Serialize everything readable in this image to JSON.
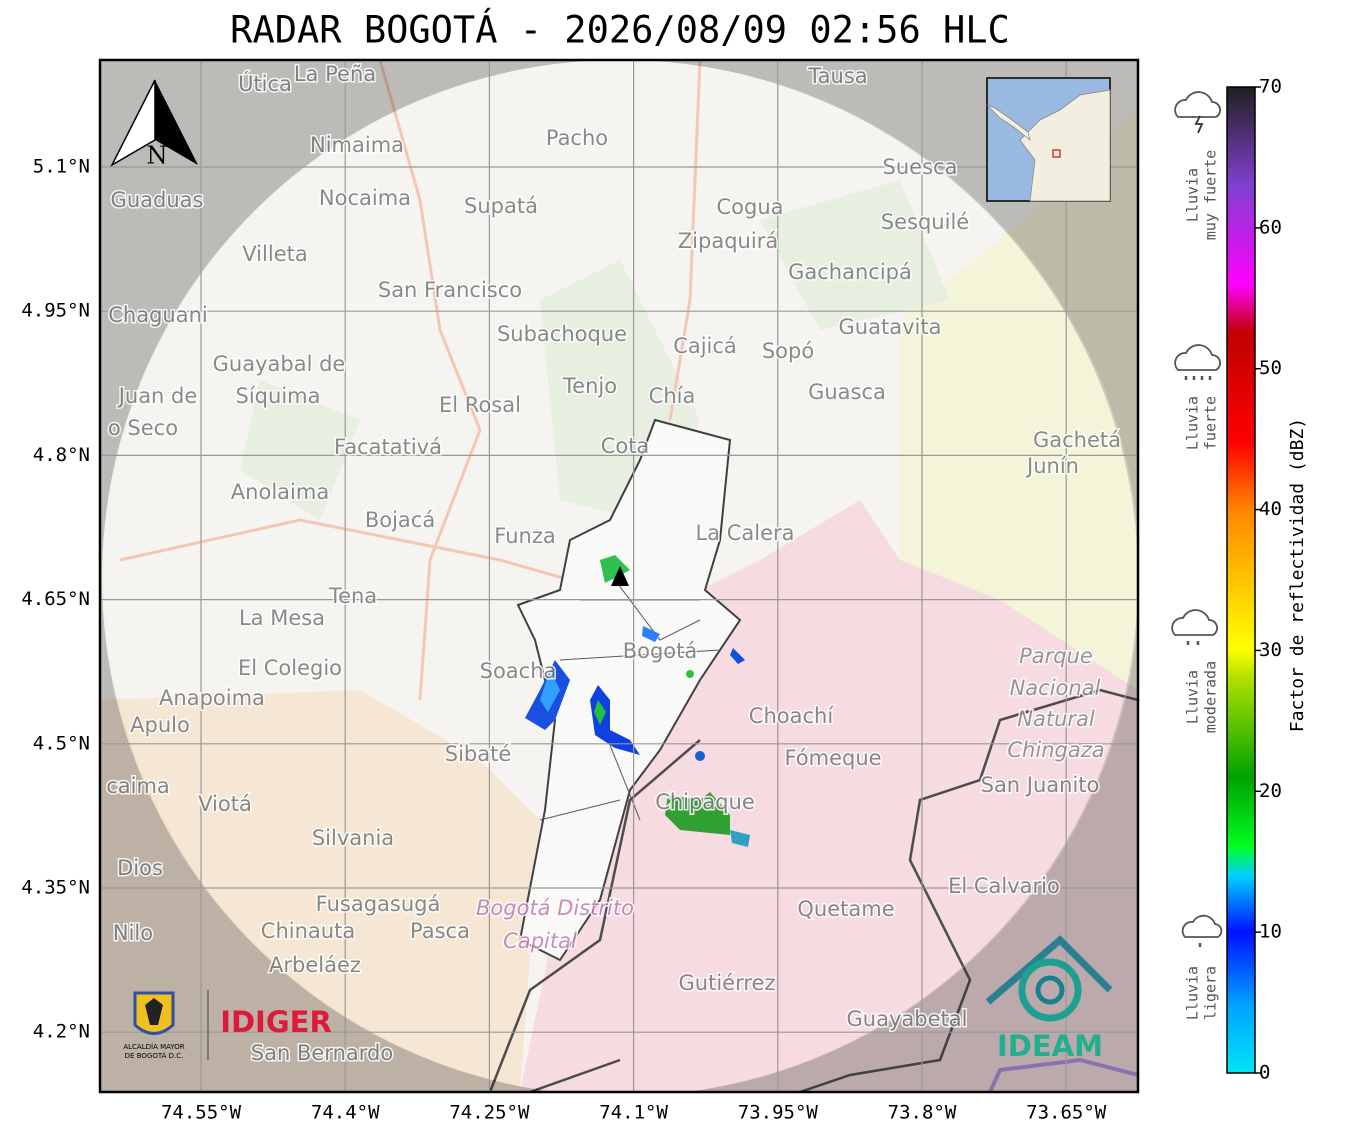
{
  "title": "RADAR BOGOTÁ - 2026/08/09 02:56 HLC",
  "map": {
    "north_label": "N",
    "lat_ticks": [
      {
        "value": 5.1,
        "label": "5.1°N"
      },
      {
        "value": 4.95,
        "label": "4.95°N"
      },
      {
        "value": 4.8,
        "label": "4.8°N"
      },
      {
        "value": 4.65,
        "label": "4.65°N"
      },
      {
        "value": 4.5,
        "label": "4.5°N"
      },
      {
        "value": 4.35,
        "label": "4.35°N"
      },
      {
        "value": 4.2,
        "label": "4.2°N"
      }
    ],
    "lon_ticks": [
      {
        "value": -74.55,
        "label": "74.55°W"
      },
      {
        "value": -74.4,
        "label": "74.4°W"
      },
      {
        "value": -74.25,
        "label": "74.25°W"
      },
      {
        "value": -74.1,
        "label": "74.1°W"
      },
      {
        "value": -73.95,
        "label": "73.95°W"
      },
      {
        "value": -73.8,
        "label": "73.8°W"
      },
      {
        "value": -73.65,
        "label": "73.65°W"
      }
    ],
    "places": [
      "La Peña",
      "Útica",
      "Tausa",
      "Pacho",
      "Nimaima",
      "Suesca",
      "Guaduas",
      "Nocaima",
      "Supatá",
      "Cogua",
      "Sesquilé",
      "Zipaquirá",
      "Villeta",
      "Gachancipá",
      "San Francisco",
      "Chaguani",
      "Guatavita",
      "Subachoque",
      "Cajicá",
      "Sopó",
      "Guayabal de",
      "Síquima",
      "Tenjo",
      "Chía",
      "Guasca",
      "Juan de",
      "El Rosal",
      "o Seco",
      "Gachetá",
      "Facatativá",
      "Cota",
      "Junín",
      "Anolaima",
      "Bojacá",
      "La Calera",
      "Funza",
      "Tena",
      "La Mesa",
      "Bogotá",
      "Parque",
      "El Colegio",
      "Soacha",
      "Nacional",
      "Anapoima",
      "Apulo",
      "Natural",
      "Choachí",
      "Chingaza",
      "Sibaté",
      "Fómeque",
      "San Juanito",
      "caima",
      "Viotá",
      "Chipaque",
      "Silvania",
      "Dios",
      "El Calvario",
      "Fusagasugá",
      "Bogotá Distrito",
      "Quetame",
      "Nilo",
      "Chinauta",
      "Pasca",
      "Capital",
      "Arbeláez",
      "Gutiérrez",
      "Guayabetal",
      "San Bernardo"
    ]
  },
  "logos": {
    "alcaldia": "ALCALDÍA MAYOR DE BOGOTÁ D.C.",
    "idiger": "IDIGER",
    "ideam": "IDEAM"
  },
  "colorbar": {
    "label": "Factor de reflectividad (dBZ)",
    "range": [
      0,
      70
    ],
    "ticks": [
      0,
      10,
      20,
      30,
      40,
      50,
      60,
      70
    ]
  },
  "rain_levels": [
    [
      "Lluvia",
      "muy fuerte"
    ],
    [
      "Lluvia",
      "fuerte"
    ],
    [
      "Lluvia",
      "moderada"
    ],
    [
      "Lluvia",
      "ligera"
    ]
  ]
}
